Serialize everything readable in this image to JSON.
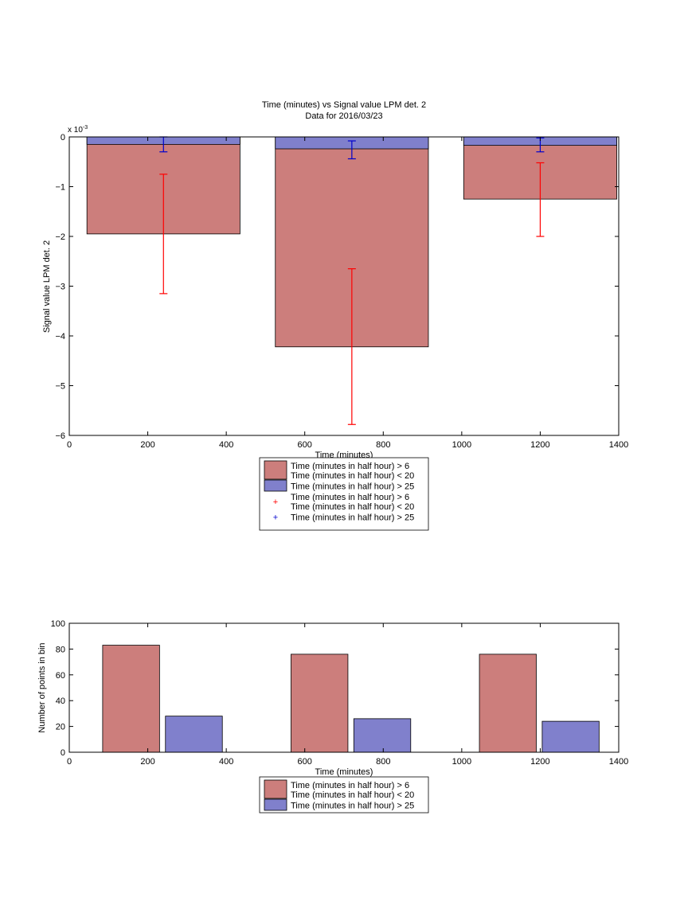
{
  "colors": {
    "series_a": "#cc7e7c",
    "series_b": "#8080cc",
    "error_a": "#ff0000",
    "error_b": "#0000cc",
    "axis": "#000000"
  },
  "chart_data": [
    {
      "type": "bar",
      "title": "Time (minutes) vs Signal value LPM det. 2",
      "subtitle": "Data for 2016/03/23",
      "xlabel": "Time (minutes)",
      "ylabel": "Signal value LPM det. 2",
      "exponent_label": "x 10",
      "exponent_power": "-3",
      "xlim": [
        0,
        1400
      ],
      "ylim": [
        -6,
        0
      ],
      "x_ticks": [
        0,
        200,
        400,
        600,
        800,
        1000,
        1200,
        1400
      ],
      "y_ticks": [
        0,
        -1,
        -2,
        -3,
        -4,
        -5,
        -6
      ],
      "series": [
        {
          "name": "Time (minutes in half hour) > 6\nTime (minutes in half hour) < 20",
          "bins": [
            [
              45,
              435
            ],
            [
              525,
              915
            ],
            [
              1005,
              1395
            ]
          ],
          "values": [
            -1.95,
            -4.22,
            -1.25
          ],
          "centers": [
            240,
            720,
            1200
          ],
          "error_low": [
            -3.15,
            -5.78,
            -2.0
          ],
          "error_high": [
            -0.75,
            -2.65,
            -0.52
          ]
        },
        {
          "name": "Time (minutes in half hour) > 25",
          "bins": [
            [
              45,
              435
            ],
            [
              525,
              915
            ],
            [
              1005,
              1395
            ]
          ],
          "values": [
            -0.15,
            -0.24,
            -0.17
          ],
          "centers": [
            240,
            720,
            1200
          ],
          "error_low": [
            -0.3,
            -0.44,
            -0.3
          ],
          "error_high": [
            0.0,
            -0.08,
            -0.02
          ]
        }
      ],
      "legend": [
        {
          "kind": "patch",
          "series": 0,
          "lines": [
            "Time (minutes in half hour) > 6",
            "Time (minutes in half hour) < 20"
          ]
        },
        {
          "kind": "patch",
          "series": 1,
          "lines": [
            "Time (minutes in half hour) > 25"
          ]
        },
        {
          "kind": "marker",
          "series": 0,
          "lines": [
            "Time (minutes in half hour) > 6",
            "Time (minutes in half hour) < 20"
          ]
        },
        {
          "kind": "marker",
          "series": 1,
          "lines": [
            "Time (minutes in half hour) > 25"
          ]
        }
      ]
    },
    {
      "type": "bar",
      "title": "",
      "xlabel": "Time (minutes)",
      "ylabel": "Number of points in bin",
      "xlim": [
        0,
        1400
      ],
      "ylim": [
        0,
        100
      ],
      "x_ticks": [
        0,
        200,
        400,
        600,
        800,
        1000,
        1200,
        1400
      ],
      "y_ticks": [
        0,
        20,
        40,
        60,
        80,
        100
      ],
      "series": [
        {
          "name": "Time (minutes in half hour) > 6\nTime (minutes in half hour) < 20",
          "bins": [
            [
              85,
              230
            ],
            [
              565,
              710
            ],
            [
              1045,
              1190
            ]
          ],
          "values": [
            83,
            76,
            76
          ]
        },
        {
          "name": "Time (minutes in half hour) > 25",
          "bins": [
            [
              245,
              390
            ],
            [
              725,
              870
            ],
            [
              1205,
              1350
            ]
          ],
          "values": [
            28,
            26,
            24
          ]
        }
      ],
      "legend": [
        {
          "kind": "patch",
          "series": 0,
          "lines": [
            "Time (minutes in half hour) > 6",
            "Time (minutes in half hour) < 20"
          ]
        },
        {
          "kind": "patch",
          "series": 1,
          "lines": [
            "Time (minutes in half hour) > 25"
          ]
        }
      ]
    }
  ]
}
